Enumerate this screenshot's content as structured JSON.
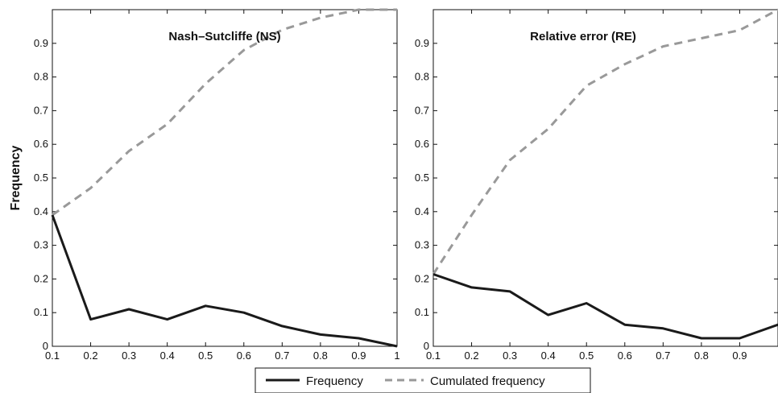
{
  "chart_data": [
    {
      "type": "line",
      "title": "Nash–Sutcliffe (NS)",
      "ylabel": "Frequency",
      "xlim": [
        0.1,
        1.0
      ],
      "ylim": [
        0,
        1.0
      ],
      "x_ticks": [
        "0.1",
        "0.2",
        "0.3",
        "0.4",
        "0.5",
        "0.6",
        "0.7",
        "0.8",
        "0.9",
        "1"
      ],
      "y_ticks": [
        "0",
        "0.1",
        "0.2",
        "0.3",
        "0.4",
        "0.5",
        "0.6",
        "0.7",
        "0.8",
        "0.9"
      ],
      "x": [
        0.1,
        0.2,
        0.3,
        0.4,
        0.5,
        0.6,
        0.7,
        0.8,
        0.9,
        1.0
      ],
      "series": [
        {
          "name": "Frequency",
          "color": "#1a1a1a",
          "style": "solid",
          "values": [
            0.39,
            0.08,
            0.11,
            0.08,
            0.12,
            0.1,
            0.06,
            0.035,
            0.024,
            0.0
          ]
        },
        {
          "name": "Cumulated frequency",
          "color": "#999999",
          "style": "dashed",
          "values": [
            0.39,
            0.47,
            0.58,
            0.66,
            0.78,
            0.88,
            0.94,
            0.976,
            1.0,
            1.0
          ]
        }
      ]
    },
    {
      "type": "line",
      "title": "Relative error (RE)",
      "ylabel": "",
      "xlim": [
        0.1,
        1.0
      ],
      "ylim": [
        0,
        1.0
      ],
      "x_ticks": [
        "0.1",
        "0.2",
        "0.3",
        "0.4",
        "0.5",
        "0.6",
        "0.7",
        "0.8",
        "0.9"
      ],
      "y_ticks": [
        "0",
        "0.1",
        "0.2",
        "0.3",
        "0.4",
        "0.5",
        "0.6",
        "0.7",
        "0.8",
        "0.9"
      ],
      "x": [
        0.1,
        0.2,
        0.3,
        0.4,
        0.5,
        0.6,
        0.7,
        0.8,
        0.9,
        1.0
      ],
      "series": [
        {
          "name": "Frequency",
          "color": "#1a1a1a",
          "style": "solid",
          "values": [
            0.214,
            0.175,
            0.163,
            0.093,
            0.128,
            0.064,
            0.053,
            0.024,
            0.024,
            0.064
          ]
        },
        {
          "name": "Cumulated frequency",
          "color": "#999999",
          "style": "dashed",
          "values": [
            0.214,
            0.39,
            0.553,
            0.646,
            0.774,
            0.838,
            0.891,
            0.915,
            0.939,
            1.0
          ]
        }
      ]
    }
  ],
  "legend": {
    "position": "bottom-center",
    "items": [
      "Frequency",
      "Cumulated frequency"
    ]
  }
}
